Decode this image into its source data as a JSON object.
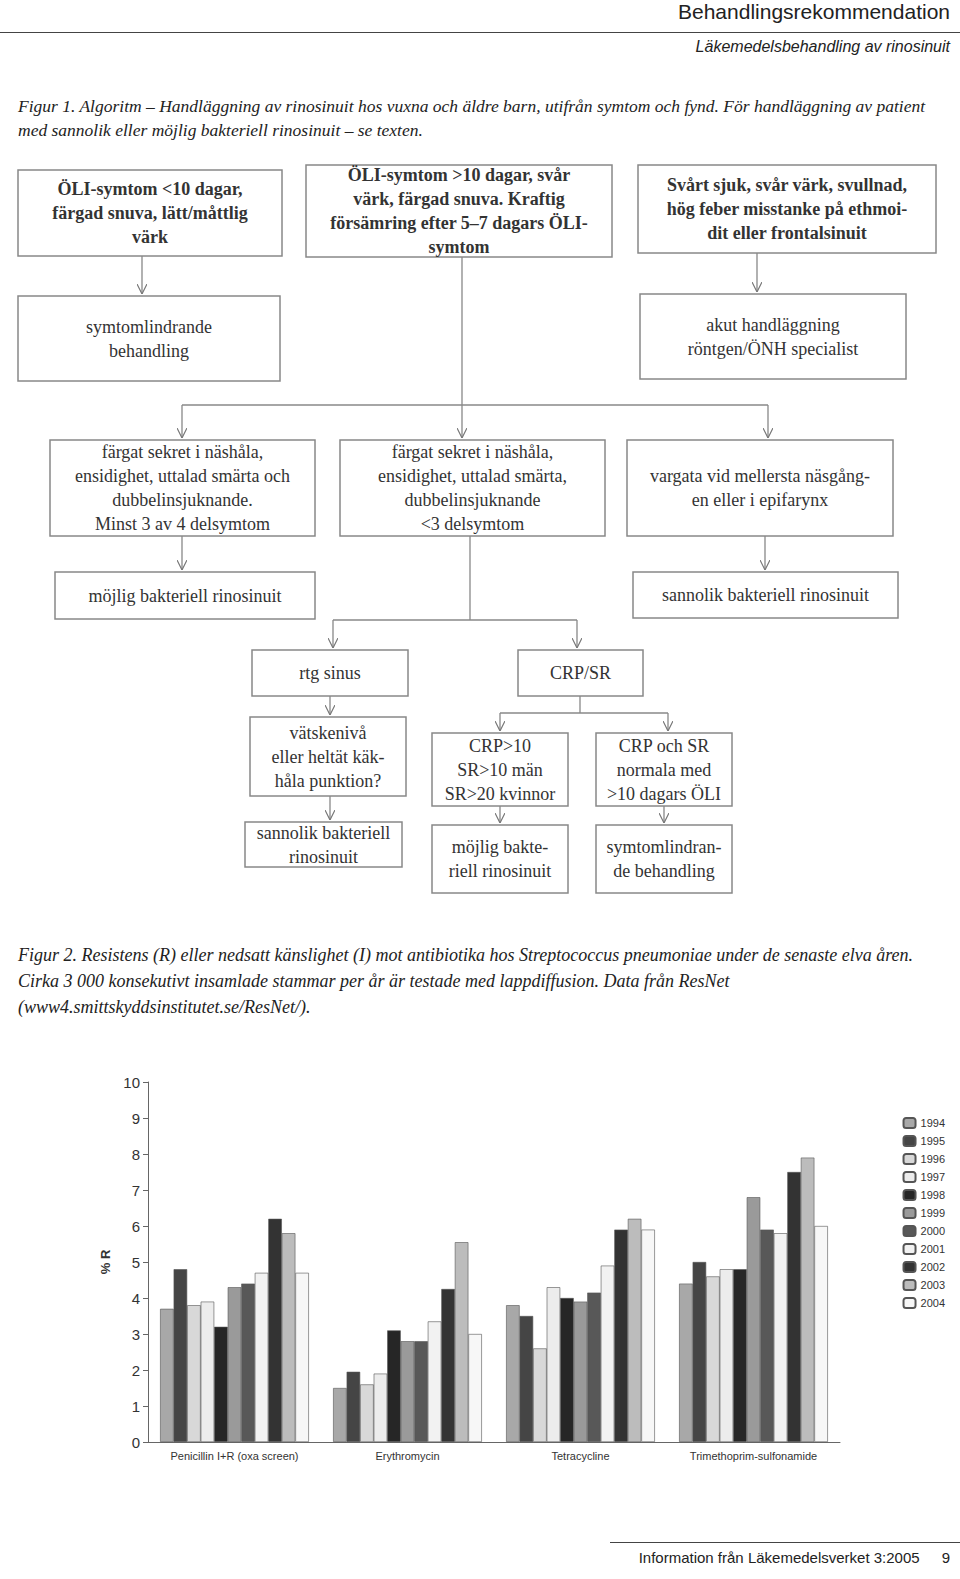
{
  "header": {
    "title": "Behandlingsrekommendation",
    "subtitle": "Läkemedelsbehandling av rinosinuit"
  },
  "figure1": {
    "caption": "Figur 1. Algoritm – Handläggning av rinosinuit hos vuxna och äldre barn, utifrån symtom och fynd. För handläggning av patient med sannolik eller möjlig bakteriell rinosinuit – se texten.",
    "nodes": [
      {
        "lines": [
          "ÖLI-symtom <10 dagar,",
          "färgad snuva, lätt/måttlig",
          "värk"
        ]
      },
      {
        "lines": [
          "ÖLI-symtom >10 dagar, svår",
          "värk, färgad snuva. Kraftig",
          "försämring efter 5–7 dagars ÖLI-",
          "symtom"
        ]
      },
      {
        "lines": [
          "Svårt sjuk, svår värk, svullnad,",
          "hög feber misstanke på ethmoi-",
          "dit eller frontalsinuit"
        ]
      },
      {
        "lines": [
          "symtomlindrande",
          "behandling"
        ]
      },
      {
        "lines": [
          "akut handläggning",
          "röntgen/ÖNH specialist"
        ]
      },
      {
        "lines": [
          "färgat sekret i näshåla,",
          "ensidighet, uttalad smärta och",
          "dubbelinsjuknande.",
          "Minst 3 av 4 delsymtom"
        ]
      },
      {
        "lines": [
          "färgat sekret i näshåla,",
          "ensidighet, uttalad smärta,",
          "dubbelinsjuknande",
          "<3 delsymtom"
        ]
      },
      {
        "lines": [
          "vargata vid mellersta näsgång-",
          "en eller i epifarynx"
        ]
      },
      {
        "lines": [
          "möjlig bakteriell rinosinuit"
        ]
      },
      {
        "lines": [
          "sannolik bakteriell rinosinuit"
        ]
      },
      {
        "lines": [
          "rtg sinus"
        ]
      },
      {
        "lines": [
          "CRP/SR"
        ]
      },
      {
        "lines": [
          "vätskenivå",
          "eller heltät käk-",
          "håla punktion?"
        ]
      },
      {
        "lines": [
          "sannolik bakteriell",
          "rinosinuit"
        ]
      },
      {
        "lines": [
          "CRP>10",
          "SR>10 män",
          "SR>20 kvinnor"
        ]
      },
      {
        "lines": [
          "möjlig bakte-",
          "riell rinosinuit"
        ]
      },
      {
        "lines": [
          "CRP och SR",
          "normala med",
          ">10 dagars ÖLI"
        ]
      },
      {
        "lines": [
          "symtomlindran-",
          "de behandling"
        ]
      }
    ]
  },
  "figure2": {
    "caption": "Figur 2.  Resistens (R) eller nedsatt känslighet (I) mot antibiotika hos Streptococcus pneumoniae under de senaste elva åren. Cirka 3 000 konsekutivt insamlade stammar per år är testade med lappdiffusion. Data från ResNet (www4.smittskyddsinstitutet.se/ResNet/)."
  },
  "chart_data": {
    "type": "bar",
    "categories": [
      "Penicillin I+R (oxa screen)",
      "Erythromycin",
      "Tetracycline",
      "Trimethoprim-sulfonamide"
    ],
    "y_label": "% R",
    "ylim": [
      0,
      10
    ],
    "yticks": [
      0,
      1,
      2,
      3,
      4,
      5,
      6,
      7,
      8,
      9,
      10
    ],
    "grid": false,
    "legend": "right",
    "series": [
      {
        "name": "1994",
        "color": "#a8a8a8",
        "values": [
          3.7,
          1.5,
          3.8,
          4.4
        ]
      },
      {
        "name": "1995",
        "color": "#454545",
        "values": [
          4.8,
          1.95,
          3.5,
          5.0
        ]
      },
      {
        "name": "1996",
        "color": "#d8d8d8",
        "values": [
          3.8,
          1.6,
          2.6,
          4.6
        ]
      },
      {
        "name": "1997",
        "color": "#ececec",
        "values": [
          3.9,
          1.9,
          4.3,
          4.8
        ]
      },
      {
        "name": "1998",
        "color": "#262626",
        "values": [
          3.2,
          3.1,
          4.0,
          4.8
        ]
      },
      {
        "name": "1999",
        "color": "#9a9a9a",
        "values": [
          4.3,
          2.8,
          3.9,
          6.8
        ]
      },
      {
        "name": "2000",
        "color": "#585858",
        "values": [
          4.4,
          2.8,
          4.15,
          5.9
        ]
      },
      {
        "name": "2001",
        "color": "#f2f2f2",
        "values": [
          4.7,
          3.35,
          4.9,
          5.8
        ]
      },
      {
        "name": "2002",
        "color": "#333333",
        "values": [
          6.2,
          4.25,
          5.9,
          7.5
        ]
      },
      {
        "name": "2003",
        "color": "#bcbcbc",
        "values": [
          5.8,
          5.55,
          6.2,
          7.9
        ]
      },
      {
        "name": "2004",
        "color": "#f7f7f7",
        "values": [
          4.7,
          3.0,
          5.9,
          6.0
        ]
      }
    ]
  },
  "footer": {
    "text": "Information från Läkemedelsverket 3:2005",
    "page": "9"
  }
}
